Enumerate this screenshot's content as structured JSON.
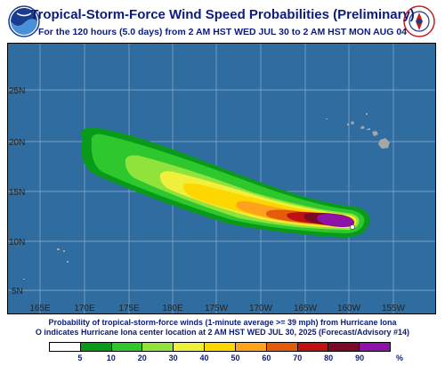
{
  "header": {
    "title": "Tropical-Storm-Force Wind Speed Probabilities (Preliminary)",
    "subtitle": "For the 120 hours (5.0 days) from 2 AM HST WED JUL 30 to 2 AM HST MON AUG 04"
  },
  "logos": {
    "left": "noaa-logo",
    "right": "national-weather-service-logo"
  },
  "map": {
    "ocean_color": "#2f6da0",
    "land_color": "#a6a6a6",
    "grid_color": "#8fb0cc",
    "lon_labels": [
      "165E",
      "170E",
      "175E",
      "180E",
      "175W",
      "170W",
      "165W",
      "160W",
      "155W"
    ],
    "lat_labels": [
      "5N",
      "10N",
      "15N",
      "20N",
      "25N"
    ],
    "storm_name": "Hurricane Iona"
  },
  "caption": {
    "line1": "Probability of tropical-storm-force winds (1-minute average >= 39 mph) from Hurricane Iona",
    "line2": "O indicates Hurricane Iona center location at 2 AM HST WED JUL 30, 2025 (Forecast/Advisory #14)"
  },
  "legend": {
    "colors": [
      "#ffffff",
      "#0a9a1a",
      "#2ec82e",
      "#8fe33a",
      "#f0f03c",
      "#ffd700",
      "#ffa21c",
      "#e25c0a",
      "#c01010",
      "#7a0a28",
      "#8c12a8"
    ],
    "labels": [
      "5",
      "10",
      "20",
      "30",
      "40",
      "50",
      "60",
      "70",
      "80",
      "90"
    ],
    "unit": "%"
  }
}
